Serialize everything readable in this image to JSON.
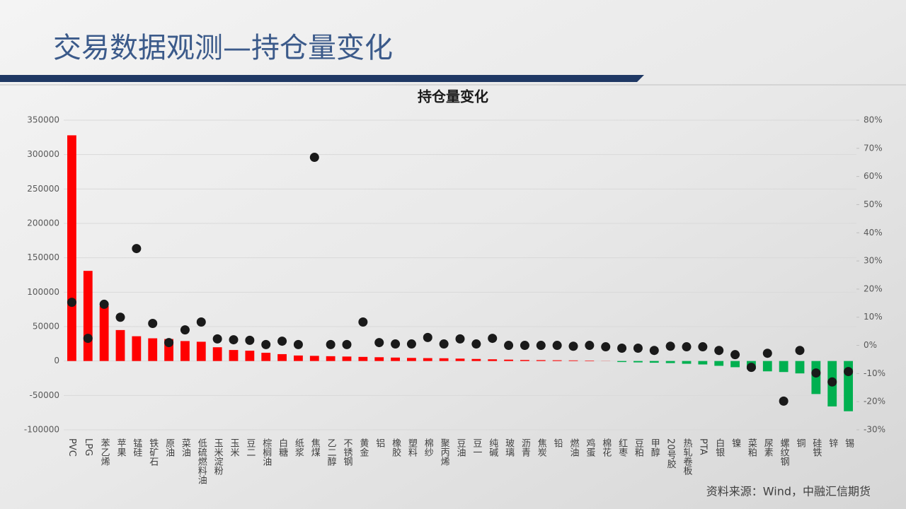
{
  "header": {
    "title": "交易数据观测—持仓量变化"
  },
  "chart_data": {
    "type": "combo",
    "title": "持仓量变化",
    "categories": [
      "PVC",
      "LPG",
      "苯乙烯",
      "苹果",
      "锰硅",
      "铁矿石",
      "原油",
      "菜油",
      "低硫燃料油",
      "玉米淀粉",
      "玉米",
      "豆二",
      "棕榈油",
      "白糖",
      "纸浆",
      "焦煤",
      "乙二醇",
      "不锈钢",
      "黄金",
      "铝",
      "橡胶",
      "塑料",
      "棉纱",
      "聚丙烯",
      "豆油",
      "豆一",
      "纯碱",
      "玻璃",
      "沥青",
      "焦炭",
      "铅",
      "燃油",
      "鸡蛋",
      "棉花",
      "红枣",
      "豆粕",
      "甲醇",
      "20号胶",
      "热轧卷板",
      "PTA",
      "白银",
      "镍",
      "菜粕",
      "尿素",
      "螺纹钢",
      "铜",
      "硅铁",
      "锌",
      "锡"
    ],
    "series": [
      {
        "type": "bar",
        "axis": "y",
        "color": "#ff0000",
        "negative_color": "#00b050",
        "values": [
          328000,
          131000,
          80000,
          45000,
          36000,
          33000,
          32000,
          29000,
          28000,
          20000,
          16000,
          15000,
          12000,
          10000,
          8000,
          7500,
          7000,
          6500,
          6000,
          5500,
          5000,
          4500,
          4200,
          4000,
          3500,
          3000,
          2500,
          2000,
          1500,
          1300,
          1100,
          900,
          700,
          200,
          -1500,
          -2000,
          -2500,
          -3000,
          -4000,
          -5000,
          -7000,
          -9000,
          -12000,
          -15000,
          -16000,
          -18000,
          -48000,
          -66000,
          -73000
        ]
      },
      {
        "type": "scatter",
        "axis": "y2",
        "color": "#1a1a1a",
        "values": [
          15.3,
          2.5,
          14.6,
          10,
          34.4,
          7.8,
          1,
          5.5,
          8.3,
          2.3,
          2,
          1.8,
          0.3,
          1.5,
          0.3,
          66.8,
          0.3,
          0.3,
          8.3,
          1,
          0.5,
          0.5,
          2.8,
          0.5,
          2.3,
          0.5,
          2.5,
          0,
          0,
          0,
          0,
          -0.3,
          0,
          -0.5,
          -1,
          -1,
          -1.8,
          -0.3,
          -0.5,
          -0.5,
          -1.8,
          -3.3,
          -7.8,
          -2.8,
          -19.8,
          -1.8,
          -9.8,
          -13,
          -9.3
        ]
      }
    ],
    "ylim": [
      -100000,
      350000
    ],
    "yticks": [
      -100000,
      -50000,
      0,
      50000,
      100000,
      150000,
      200000,
      250000,
      300000,
      350000
    ],
    "y2lim": [
      -30,
      80
    ],
    "y2ticks": [
      {
        "value": -30,
        "label": "-30%"
      },
      {
        "value": -20,
        "label": "-20%"
      },
      {
        "value": -10,
        "label": "-10%"
      },
      {
        "value": 0,
        "label": "0%"
      },
      {
        "value": 10,
        "label": "10%"
      },
      {
        "value": 20,
        "label": "20%"
      },
      {
        "value": 30,
        "label": "30%"
      },
      {
        "value": 40,
        "label": "40%"
      },
      {
        "value": 50,
        "label": "50%"
      },
      {
        "value": 60,
        "label": "60%"
      },
      {
        "value": 70,
        "label": "70%"
      },
      {
        "value": 80,
        "label": "80%"
      }
    ],
    "grid": true
  },
  "footer": {
    "source": "资料来源：Wind，中融汇信期货"
  }
}
